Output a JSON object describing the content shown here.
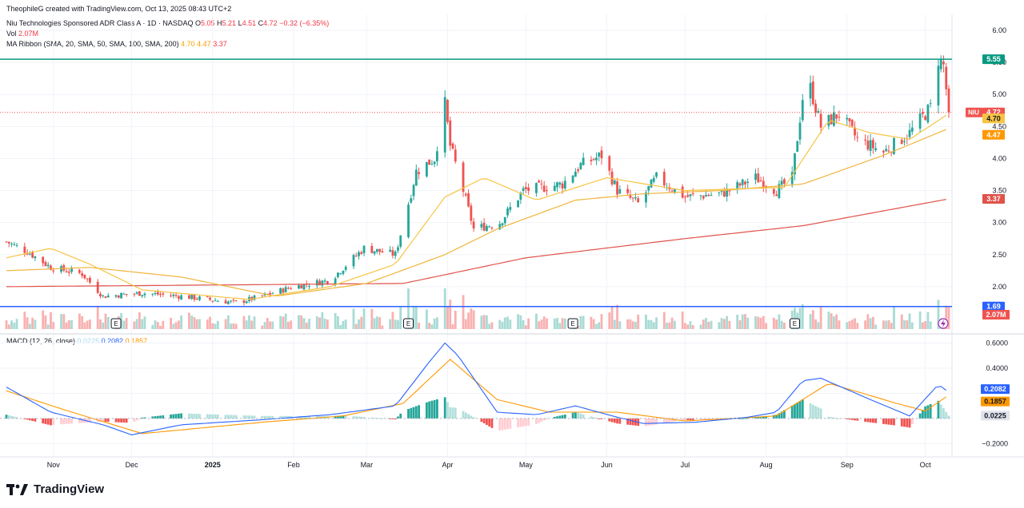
{
  "header": {
    "credit": "TheophileG created with TradingView.com, Oct 13, 2025 08:43 UTC+2",
    "symbol_line": "Niu Technologies Sponsored ADR Class A · 1D · NASDAQ",
    "o_label": "O",
    "o_val": "5.05",
    "h_label": "H",
    "h_val": "5.21",
    "l_label": "L",
    "l_val": "4.51",
    "c_label": "C",
    "c_val": "4.72",
    "change": "−0.32 (−6.35%)",
    "vol_label": "Vol",
    "vol_val": "2.07M",
    "ma_label": "MA Ribbon (SMA, 20, SMA, 50, SMA, 100, SMA, 200)",
    "ma_v1": "4.70",
    "ma_v2": "4.47",
    "ma_v3": "3.37",
    "macd_label": "MACD (12, 26, close)",
    "macd_hist": "0.0225",
    "macd_line": "0.2082",
    "macd_signal": "0.1857"
  },
  "brand": {
    "name": "TradingView"
  },
  "colors": {
    "up": "#26a69a",
    "down": "#ef5350",
    "ma_fast": "#f7c443",
    "ma_mid": "#f0b53c",
    "ma_slow": "#e0524a",
    "resistance": "#089981",
    "support": "#2962ff",
    "macd": "#2962ff",
    "signal": "#ff9800",
    "grid": "#f0f3fa"
  },
  "chart_data": [
    {
      "type": "candlestick",
      "symbol": "NIU",
      "y_ticks": [
        6.0,
        5.5,
        5.0,
        4.5,
        4.0,
        3.5,
        3.0,
        2.5,
        2.0
      ],
      "ylim": [
        1.3,
        6.2
      ],
      "x_ticks": [
        "Nov",
        "Dec",
        "2025",
        "Feb",
        "Mar",
        "Apr",
        "May",
        "Jun",
        "Jul",
        "Aug",
        "Sep",
        "Oct"
      ],
      "anchors": [
        {
          "date": "2024-10-14",
          "price": 2.7
        },
        {
          "date": "2024-10-22",
          "price": 2.55
        },
        {
          "date": "2024-10-31",
          "price": 2.3
        },
        {
          "date": "2024-11-12",
          "price": 2.2
        },
        {
          "date": "2024-11-20",
          "price": 1.85
        },
        {
          "date": "2024-12-05",
          "price": 1.9
        },
        {
          "date": "2024-12-20",
          "price": 1.85
        },
        {
          "date": "2025-01-10",
          "price": 1.75
        },
        {
          "date": "2025-01-20",
          "price": 1.85
        },
        {
          "date": "2025-02-01",
          "price": 2.0
        },
        {
          "date": "2025-02-15",
          "price": 2.1
        },
        {
          "date": "2025-02-28",
          "price": 2.6
        },
        {
          "date": "2025-03-12",
          "price": 2.5
        },
        {
          "date": "2025-03-17",
          "price": 3.3
        },
        {
          "date": "2025-03-20",
          "price": 3.8
        },
        {
          "date": "2025-03-27",
          "price": 4.0
        },
        {
          "date": "2025-03-31",
          "price": 4.85
        },
        {
          "date": "2025-04-02",
          "price": 4.2
        },
        {
          "date": "2025-04-07",
          "price": 3.5
        },
        {
          "date": "2025-04-11",
          "price": 2.9
        },
        {
          "date": "2025-04-21",
          "price": 3.0
        },
        {
          "date": "2025-04-30",
          "price": 3.5
        },
        {
          "date": "2025-05-15",
          "price": 3.6
        },
        {
          "date": "2025-05-22",
          "price": 3.9
        },
        {
          "date": "2025-05-30",
          "price": 4.05
        },
        {
          "date": "2025-06-05",
          "price": 3.5
        },
        {
          "date": "2025-06-13",
          "price": 3.3
        },
        {
          "date": "2025-06-20",
          "price": 3.7
        },
        {
          "date": "2025-07-01",
          "price": 3.4
        },
        {
          "date": "2025-07-15",
          "price": 3.45
        },
        {
          "date": "2025-07-28",
          "price": 3.7
        },
        {
          "date": "2025-08-05",
          "price": 3.5
        },
        {
          "date": "2025-08-11",
          "price": 3.7
        },
        {
          "date": "2025-08-15",
          "price": 4.95
        },
        {
          "date": "2025-08-18",
          "price": 5.1
        },
        {
          "date": "2025-08-22",
          "price": 4.5
        },
        {
          "date": "2025-08-29",
          "price": 4.7
        },
        {
          "date": "2025-09-05",
          "price": 4.3
        },
        {
          "date": "2025-09-15",
          "price": 4.1
        },
        {
          "date": "2025-09-25",
          "price": 4.4
        },
        {
          "date": "2025-10-03",
          "price": 4.8
        },
        {
          "date": "2025-10-06",
          "price": 5.55
        },
        {
          "date": "2025-10-08",
          "price": 5.45
        },
        {
          "date": "2025-10-10",
          "price": 4.72
        }
      ],
      "ma_fast": [
        {
          "date": "2024-10-14",
          "price": 2.45
        },
        {
          "date": "2024-10-31",
          "price": 2.6
        },
        {
          "date": "2024-11-15",
          "price": 2.35
        },
        {
          "date": "2024-12-05",
          "price": 1.95
        },
        {
          "date": "2025-01-15",
          "price": 1.8
        },
        {
          "date": "2025-02-15",
          "price": 2.0
        },
        {
          "date": "2025-03-12",
          "price": 2.35
        },
        {
          "date": "2025-03-31",
          "price": 3.4
        },
        {
          "date": "2025-04-15",
          "price": 3.7
        },
        {
          "date": "2025-05-05",
          "price": 3.35
        },
        {
          "date": "2025-06-01",
          "price": 3.7
        },
        {
          "date": "2025-07-01",
          "price": 3.5
        },
        {
          "date": "2025-08-08",
          "price": 3.55
        },
        {
          "date": "2025-08-25",
          "price": 4.6
        },
        {
          "date": "2025-09-10",
          "price": 4.4
        },
        {
          "date": "2025-09-25",
          "price": 4.3
        },
        {
          "date": "2025-10-10",
          "price": 4.7
        }
      ],
      "ma_mid": [
        {
          "date": "2024-10-14",
          "price": 2.25
        },
        {
          "date": "2024-11-15",
          "price": 2.3
        },
        {
          "date": "2024-12-20",
          "price": 2.15
        },
        {
          "date": "2025-01-25",
          "price": 1.85
        },
        {
          "date": "2025-03-01",
          "price": 2.05
        },
        {
          "date": "2025-03-31",
          "price": 2.5
        },
        {
          "date": "2025-04-20",
          "price": 2.9
        },
        {
          "date": "2025-05-20",
          "price": 3.35
        },
        {
          "date": "2025-06-15",
          "price": 3.45
        },
        {
          "date": "2025-07-15",
          "price": 3.5
        },
        {
          "date": "2025-08-15",
          "price": 3.6
        },
        {
          "date": "2025-09-15",
          "price": 4.05
        },
        {
          "date": "2025-10-10",
          "price": 4.47
        }
      ],
      "ma_slow": [
        {
          "date": "2024-10-14",
          "price": 2.0
        },
        {
          "date": "2025-01-15",
          "price": 2.03
        },
        {
          "date": "2025-03-15",
          "price": 2.05
        },
        {
          "date": "2025-05-01",
          "price": 2.45
        },
        {
          "date": "2025-07-01",
          "price": 2.75
        },
        {
          "date": "2025-08-15",
          "price": 2.95
        },
        {
          "date": "2025-10-10",
          "price": 3.37
        }
      ],
      "last_price": 4.72,
      "resistance": 5.55,
      "support": 1.69,
      "earnings_dates": [
        "2024-11-25",
        "2025-03-17",
        "2025-05-19",
        "2025-08-12"
      ],
      "earnings_marker": "E",
      "volume_last": "2.07M",
      "price_labels": [
        {
          "text": "5.55",
          "value": 5.55,
          "color": "#089981"
        },
        {
          "text": "4.72",
          "value": 4.72,
          "color": "#ef5350",
          "tag": "NIU"
        },
        {
          "text": "4.70",
          "value": 4.7,
          "color": "#f7c443"
        },
        {
          "text": "4.47",
          "value": 4.47,
          "color": "#ff9800"
        },
        {
          "text": "3.37",
          "value": 3.37,
          "color": "#e0524a"
        },
        {
          "text": "1.69",
          "value": 1.69,
          "color": "#2962ff"
        }
      ]
    },
    {
      "type": "macd",
      "y_ticks": [
        0.6,
        0.4,
        0.2,
        0.0,
        -0.2
      ],
      "y_tick_labels": [
        "0.6000",
        "0.4000",
        "",
        "",
        "−0.2000"
      ],
      "ylim": [
        -0.28,
        0.66
      ],
      "macd": [
        {
          "date": "2024-10-14",
          "v": 0.25
        },
        {
          "date": "2024-10-31",
          "v": 0.05
        },
        {
          "date": "2024-11-20",
          "v": -0.05
        },
        {
          "date": "2024-12-01",
          "v": -0.13
        },
        {
          "date": "2024-12-20",
          "v": -0.05
        },
        {
          "date": "2025-01-20",
          "v": -0.01
        },
        {
          "date": "2025-02-15",
          "v": 0.03
        },
        {
          "date": "2025-03-12",
          "v": 0.1
        },
        {
          "date": "2025-03-25",
          "v": 0.45
        },
        {
          "date": "2025-03-31",
          "v": 0.6
        },
        {
          "date": "2025-04-05",
          "v": 0.5
        },
        {
          "date": "2025-04-20",
          "v": 0.05
        },
        {
          "date": "2025-05-05",
          "v": 0.03
        },
        {
          "date": "2025-05-20",
          "v": 0.1
        },
        {
          "date": "2025-06-05",
          "v": 0.01
        },
        {
          "date": "2025-06-15",
          "v": -0.04
        },
        {
          "date": "2025-07-05",
          "v": -0.03
        },
        {
          "date": "2025-07-25",
          "v": 0.01
        },
        {
          "date": "2025-08-05",
          "v": 0.05
        },
        {
          "date": "2025-08-15",
          "v": 0.3
        },
        {
          "date": "2025-08-22",
          "v": 0.32
        },
        {
          "date": "2025-09-10",
          "v": 0.15
        },
        {
          "date": "2025-09-25",
          "v": 0.02
        },
        {
          "date": "2025-10-06",
          "v": 0.27
        },
        {
          "date": "2025-10-10",
          "v": 0.2082
        }
      ],
      "signal": [
        {
          "date": "2024-10-14",
          "v": 0.22
        },
        {
          "date": "2024-11-05",
          "v": 0.07
        },
        {
          "date": "2024-12-05",
          "v": -0.12
        },
        {
          "date": "2025-01-20",
          "v": -0.03
        },
        {
          "date": "2025-02-20",
          "v": 0.02
        },
        {
          "date": "2025-03-15",
          "v": 0.12
        },
        {
          "date": "2025-04-02",
          "v": 0.47
        },
        {
          "date": "2025-04-20",
          "v": 0.15
        },
        {
          "date": "2025-05-10",
          "v": 0.05
        },
        {
          "date": "2025-06-05",
          "v": 0.05
        },
        {
          "date": "2025-07-01",
          "v": -0.02
        },
        {
          "date": "2025-08-05",
          "v": 0.02
        },
        {
          "date": "2025-08-25",
          "v": 0.28
        },
        {
          "date": "2025-09-20",
          "v": 0.12
        },
        {
          "date": "2025-10-01",
          "v": 0.06
        },
        {
          "date": "2025-10-10",
          "v": 0.1857
        }
      ],
      "histogram_last": 0.0225,
      "value_labels": [
        {
          "text": "0.2082",
          "value": 0.2082,
          "color": "#2962ff"
        },
        {
          "text": "0.1857",
          "value": 0.1857,
          "color": "#ff9800"
        },
        {
          "text": "0.0225",
          "value": 0.0225,
          "color": "#e0e3eb"
        }
      ]
    }
  ]
}
